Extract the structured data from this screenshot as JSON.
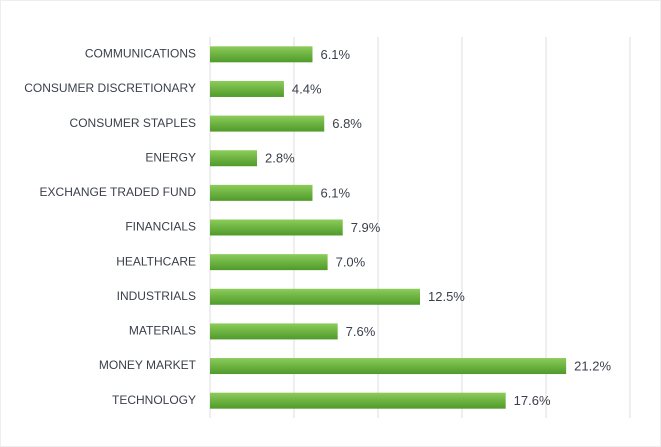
{
  "chart_data": {
    "type": "bar",
    "orientation": "horizontal",
    "categories": [
      "COMMUNICATIONS",
      "CONSUMER DISCRETIONARY",
      "CONSUMER STAPLES",
      "ENERGY",
      "EXCHANGE TRADED FUND",
      "FINANCIALS",
      "HEALTHCARE",
      "INDUSTRIALS",
      "MATERIALS",
      "MONEY MARKET",
      "TECHNOLOGY"
    ],
    "values": [
      6.1,
      4.4,
      6.8,
      2.8,
      6.1,
      7.9,
      7.0,
      12.5,
      7.6,
      21.2,
      17.6
    ],
    "value_labels": [
      "6.1%",
      "4.4%",
      "6.8%",
      "2.8%",
      "6.1%",
      "7.9%",
      "7.0%",
      "12.5%",
      "7.6%",
      "21.2%",
      "17.6%"
    ],
    "color": "#6db33f",
    "xlim": [
      0,
      25
    ],
    "xticks": [
      0,
      5,
      10,
      15,
      20,
      25
    ],
    "grid": true
  }
}
